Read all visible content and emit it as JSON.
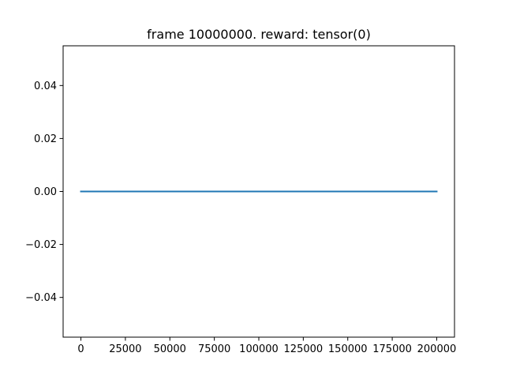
{
  "chart_data": {
    "type": "line",
    "title": "frame 10000000. reward: tensor(0)",
    "xlabel": "",
    "ylabel": "",
    "xlim": [
      -10000,
      210000
    ],
    "ylim": [
      -0.055,
      0.055
    ],
    "xticks": [
      0,
      25000,
      50000,
      75000,
      100000,
      125000,
      150000,
      175000,
      200000
    ],
    "xtick_labels": [
      "0",
      "25000",
      "50000",
      "75000",
      "100000",
      "125000",
      "150000",
      "175000",
      "200000"
    ],
    "yticks": [
      0.04,
      0.02,
      0.0,
      -0.02,
      -0.04
    ],
    "ytick_labels": [
      "0.04",
      "0.02",
      "0.00",
      "−0.02",
      "−0.04"
    ],
    "grid": false,
    "series": [
      {
        "x": [
          0,
          200000
        ],
        "y": [
          0,
          0
        ],
        "color": "#1f77b4"
      }
    ]
  }
}
